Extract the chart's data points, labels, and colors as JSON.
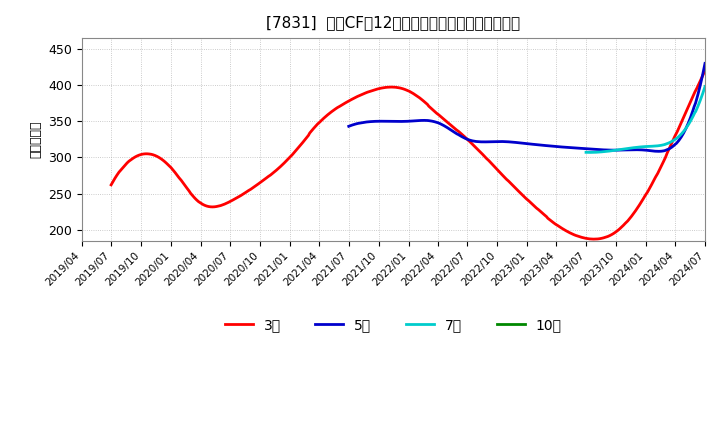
{
  "title": "[7831]  営業CFだ12か月移動合計の標準唄差の推移",
  "ylabel": "（百万円）",
  "ylim": [
    185,
    465
  ],
  "yticks": [
    200,
    250,
    300,
    350,
    400,
    450
  ],
  "background_color": "#ffffff",
  "grid_color": "#aaaaaa",
  "series": {
    "3年": {
      "color": "#ff0000",
      "linewidth": 2.0,
      "dates_months": [
        3,
        6,
        9,
        12,
        15,
        18,
        21,
        24,
        27,
        30,
        33,
        36,
        39,
        42,
        45,
        48,
        51,
        54,
        57,
        60,
        63
      ],
      "values": [
        262,
        304,
        286,
        237,
        239,
        265,
        300,
        348,
        378,
        395,
        392,
        360,
        325,
        283,
        242,
        207,
        188,
        197,
        248,
        330,
        420
      ]
    },
    "5年": {
      "color": "#0000cc",
      "linewidth": 2.0,
      "dates_months": [
        27,
        30,
        33,
        36,
        39,
        42,
        45,
        48,
        51,
        54,
        57,
        60,
        63
      ],
      "values": [
        343,
        350,
        350,
        348,
        325,
        322,
        319,
        315,
        312,
        310,
        310,
        318,
        430
      ]
    },
    "7年": {
      "color": "#00cccc",
      "linewidth": 2.0,
      "dates_months": [
        51,
        54,
        57,
        60,
        63
      ],
      "values": [
        307,
        310,
        315,
        325,
        398
      ]
    },
    "10年": {
      "color": "#008800",
      "linewidth": 2.0,
      "dates_months": [],
      "values": []
    }
  },
  "legend_labels": [
    "3年",
    "5年",
    "7年",
    "10年"
  ],
  "legend_colors": [
    "#ff0000",
    "#0000cc",
    "#00cccc",
    "#008800"
  ],
  "x_start": "2019/04",
  "x_end": "2024/07"
}
